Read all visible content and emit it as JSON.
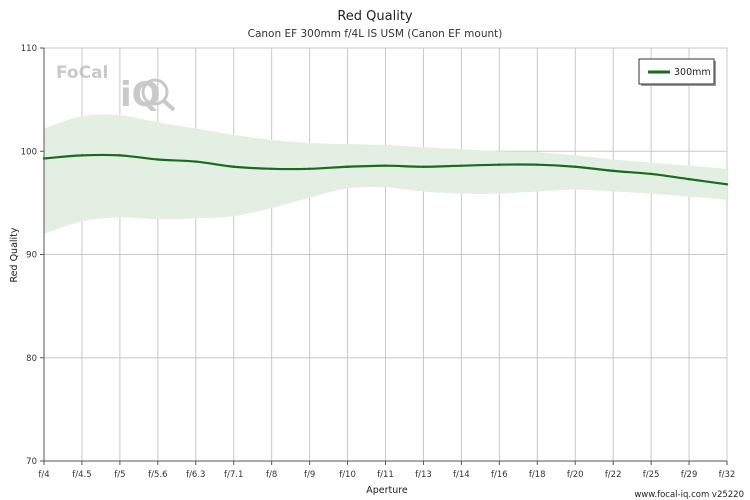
{
  "chart_data": {
    "type": "line",
    "title": "Red Quality",
    "subtitle": "Canon EF 300mm f/4L IS USM (Canon EF mount)",
    "xlabel": "Aperture",
    "ylabel": "Red Quality",
    "categories": [
      "f/4",
      "f/4.5",
      "f/5",
      "f/5.6",
      "f/6.3",
      "f/7.1",
      "f/8",
      "f/9",
      "f/10",
      "f/11",
      "f/13",
      "f/14",
      "f/16",
      "f/18",
      "f/20",
      "f/22",
      "f/25",
      "f/29",
      "f/32"
    ],
    "ylim": [
      70,
      110
    ],
    "yticks": [
      70,
      80,
      90,
      100,
      110
    ],
    "grid": true,
    "legend_position": "top-right",
    "series": [
      {
        "name": "300mm",
        "color": "#1a6b1a",
        "values": [
          99.3,
          99.6,
          99.6,
          99.2,
          99.0,
          98.5,
          98.3,
          98.3,
          98.5,
          98.6,
          98.5,
          98.6,
          98.7,
          98.7,
          98.5,
          98.1,
          97.8,
          97.3,
          96.8
        ],
        "band_upper": [
          102.2,
          103.4,
          103.5,
          102.8,
          102.2,
          101.6,
          101.1,
          100.8,
          100.7,
          100.6,
          100.4,
          100.2,
          100.0,
          99.9,
          99.6,
          99.2,
          98.9,
          98.6,
          98.3
        ],
        "band_lower": [
          92.0,
          93.2,
          93.6,
          93.4,
          93.5,
          93.7,
          94.5,
          95.5,
          96.4,
          96.5,
          96.1,
          95.9,
          95.9,
          96.1,
          96.3,
          96.1,
          95.9,
          95.6,
          95.3
        ],
        "band_color": "#e3efe3"
      }
    ]
  },
  "logo": {
    "text_top": "FoCal",
    "text_bottom": "iQ"
  },
  "footer": "www.focal-iq.com  v25220"
}
